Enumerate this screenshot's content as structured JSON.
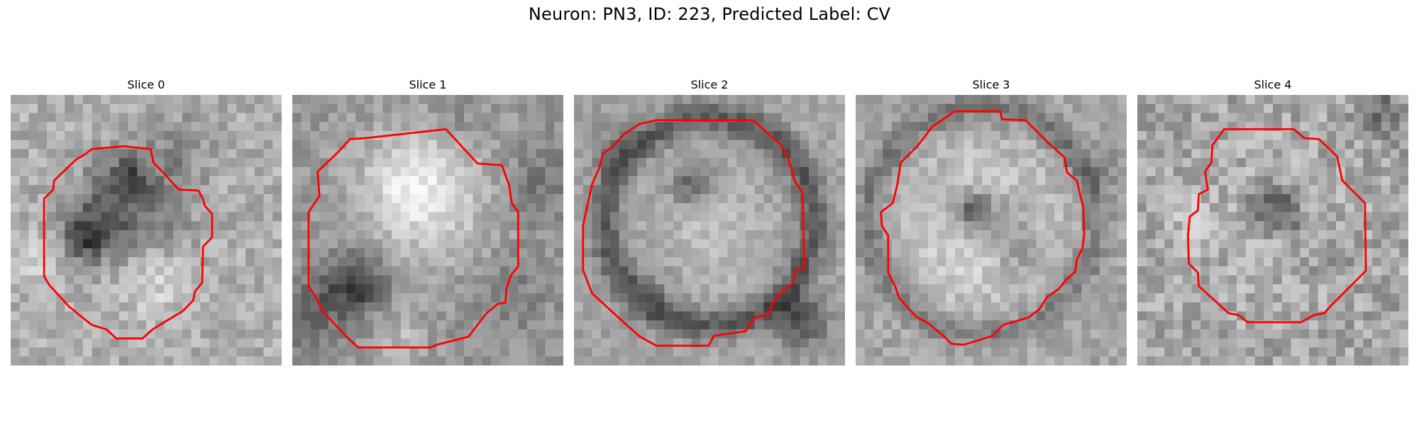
{
  "title": "Neuron: PN3, ID: 223, Predicted Label: CV",
  "panels": [
    {
      "title": "Slice 0"
    },
    {
      "title": "Slice 1"
    },
    {
      "title": "Slice 2"
    },
    {
      "title": "Slice 3"
    },
    {
      "title": "Slice 4"
    }
  ],
  "colors": {
    "contour": "#ff0000",
    "background": "#ffffff"
  }
}
